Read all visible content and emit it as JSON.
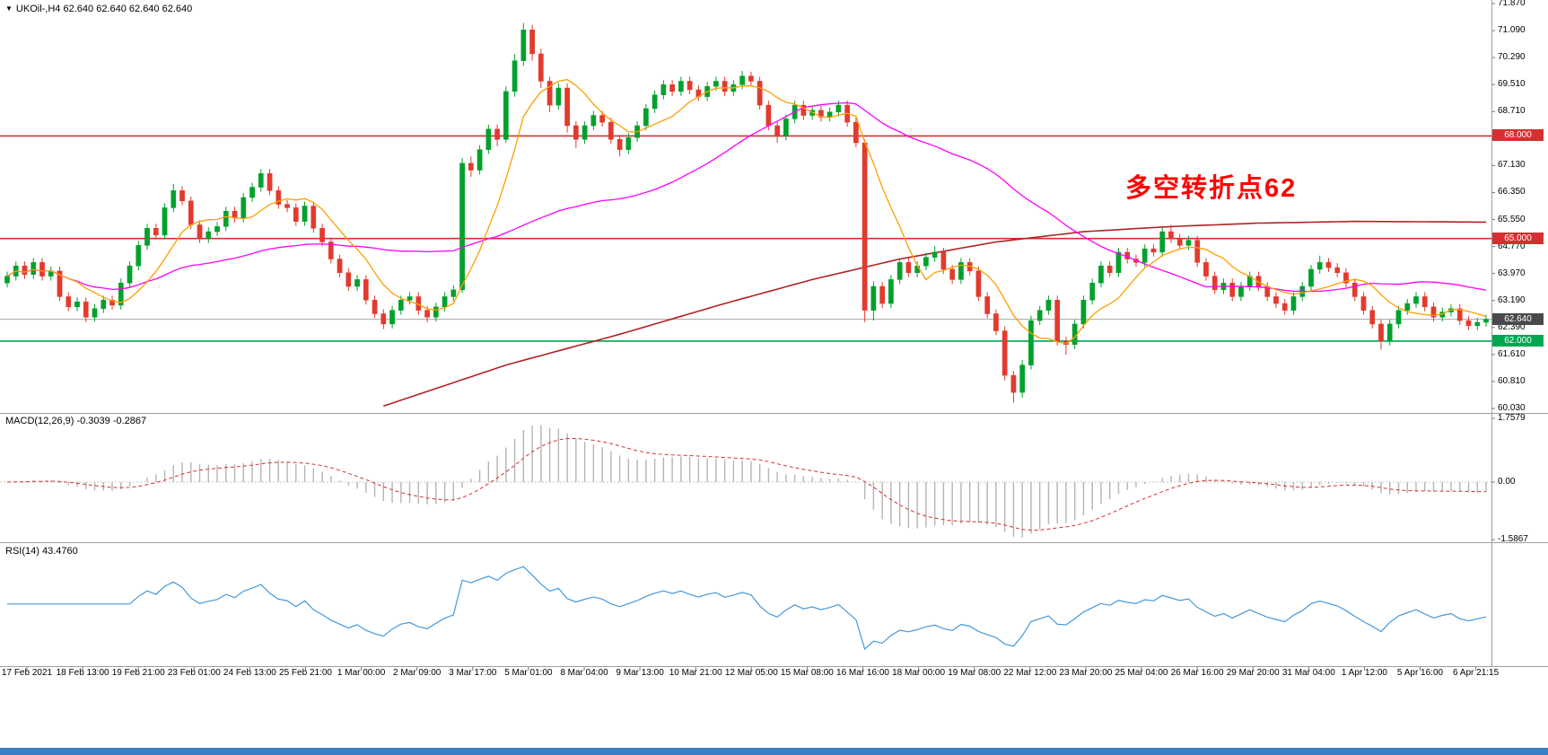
{
  "header": {
    "dropdown_icon": "▼",
    "symbol": "UKOil-,H4",
    "ohlc": "62.640 62.640 62.640 62.640"
  },
  "annotation": {
    "text": "多空转折点62"
  },
  "colors": {
    "background": "#FFFFFF",
    "bull": "#00A12B",
    "bear": "#E23A2E",
    "ma_fast": "#FF9E00",
    "ma_medium": "#FF00FF",
    "ma_slow": "#B22222",
    "macd_histogram": "#B4B4B4",
    "macd_signal": "#D62F2F",
    "rsi_line": "#4499DD",
    "level_red": "#D62F2F",
    "level_green": "#00A651",
    "current_price_line": "#A6A6A6",
    "current_price_box": "#4A4A4A",
    "separator": "#9E9E9E",
    "annotation": "#FF0000",
    "bottom_strip": "#3B7FC4"
  },
  "chart_data": [
    {
      "type": "candlestick",
      "title": "UKOil- H4",
      "timeframe": "H4",
      "ylim": [
        60.03,
        71.87
      ],
      "y_ticks": [
        "71.870",
        "71.090",
        "70.290",
        "69.510",
        "68.710",
        "67.930",
        "67.130",
        "66.350",
        "65.550",
        "64.770",
        "63.970",
        "63.190",
        "62.390",
        "61.610",
        "60.810",
        "60.030"
      ],
      "x_ticks": [
        "17 Feb 2021",
        "18 Feb 13:00",
        "19 Feb 21:00",
        "23 Feb 01:00",
        "24 Feb 13:00",
        "25 Feb 21:00",
        "1 Mar 00:00",
        "2 Mar 09:00",
        "3 Mar 17:00",
        "5 Mar 01:00",
        "8 Mar 04:00",
        "9 Mar 13:00",
        "10 Mar 21:00",
        "12 Mar 05:00",
        "15 Mar 08:00",
        "16 Mar 16:00",
        "18 Mar 00:00",
        "19 Mar 08:00",
        "22 Mar 12:00",
        "23 Mar 20:00",
        "25 Mar 04:00",
        "26 Mar 16:00",
        "29 Mar 20:00",
        "31 Mar 04:00",
        "1 Apr 12:00",
        "5 Apr 16:00",
        "6 Apr 21:15"
      ],
      "levels": [
        {
          "price": 68.0,
          "label": "68.000",
          "role": "resistance",
          "color_key": "level_red"
        },
        {
          "price": 65.0,
          "label": "65.000",
          "role": "resistance",
          "color_key": "level_red"
        },
        {
          "price": 62.0,
          "label": "62.000",
          "role": "support",
          "color_key": "level_green"
        },
        {
          "price": 62.64,
          "label": "62.640",
          "role": "current-price",
          "color_key": "current_price_box"
        }
      ],
      "moving_averages": [
        {
          "name": "fast",
          "type": "sma",
          "period": 8,
          "color_key": "ma_fast"
        },
        {
          "name": "medium",
          "type": "sma",
          "period": 40,
          "color_key": "ma_medium"
        },
        {
          "name": "slow",
          "type": "points",
          "color_key": "ma_slow",
          "points": [
            [
              43,
              60.1
            ],
            [
              57,
              61.3
            ],
            [
              70,
              62.2
            ],
            [
              82,
              63.1
            ],
            [
              92,
              63.8
            ],
            [
              102,
              64.4
            ],
            [
              113,
              64.9
            ],
            [
              123,
              65.2
            ],
            [
              133,
              65.35
            ],
            [
              143,
              65.45
            ],
            [
              154,
              65.5
            ],
            [
              169,
              65.48
            ]
          ]
        }
      ],
      "candles": [
        [
          63.7,
          64.03,
          63.57,
          63.9
        ],
        [
          63.9,
          64.33,
          63.77,
          64.2
        ],
        [
          64.2,
          64.33,
          63.82,
          63.95
        ],
        [
          63.95,
          64.43,
          63.82,
          64.3
        ],
        [
          64.3,
          64.43,
          63.77,
          63.9
        ],
        [
          63.9,
          64.18,
          63.77,
          64.05
        ],
        [
          64.05,
          64.18,
          63.17,
          63.3
        ],
        [
          63.3,
          63.43,
          62.87,
          63.0
        ],
        [
          63.0,
          63.28,
          62.87,
          63.15
        ],
        [
          63.15,
          63.28,
          62.55,
          62.7
        ],
        [
          62.7,
          63.08,
          62.57,
          62.95
        ],
        [
          62.95,
          63.33,
          62.82,
          63.2
        ],
        [
          63.2,
          63.33,
          62.92,
          63.05
        ],
        [
          63.05,
          63.83,
          62.92,
          63.7
        ],
        [
          63.7,
          64.33,
          63.57,
          64.2
        ],
        [
          64.2,
          64.93,
          64.07,
          64.8
        ],
        [
          64.8,
          65.43,
          64.67,
          65.3
        ],
        [
          65.3,
          65.43,
          64.97,
          65.1
        ],
        [
          65.1,
          66.03,
          64.97,
          65.9
        ],
        [
          65.9,
          66.6,
          65.77,
          66.4
        ],
        [
          66.4,
          66.53,
          65.97,
          66.1
        ],
        [
          66.1,
          66.23,
          65.27,
          65.4
        ],
        [
          65.4,
          65.53,
          64.87,
          65.0
        ],
        [
          65.0,
          65.33,
          64.87,
          65.2
        ],
        [
          65.2,
          65.48,
          65.07,
          65.35
        ],
        [
          65.35,
          65.93,
          65.22,
          65.8
        ],
        [
          65.8,
          65.93,
          65.47,
          65.6
        ],
        [
          65.6,
          66.33,
          65.47,
          66.2
        ],
        [
          66.2,
          66.63,
          66.07,
          66.5
        ],
        [
          66.5,
          67.03,
          66.37,
          66.9
        ],
        [
          66.9,
          67.03,
          66.27,
          66.4
        ],
        [
          66.4,
          66.53,
          65.87,
          66.0
        ],
        [
          66.0,
          66.13,
          65.77,
          65.9
        ],
        [
          65.9,
          66.03,
          65.37,
          65.5
        ],
        [
          65.5,
          66.08,
          65.37,
          65.95
        ],
        [
          65.95,
          66.08,
          65.17,
          65.3
        ],
        [
          65.3,
          65.43,
          64.77,
          64.9
        ],
        [
          64.9,
          65.03,
          64.27,
          64.4
        ],
        [
          64.4,
          64.53,
          63.87,
          64.0
        ],
        [
          64.0,
          64.13,
          63.47,
          63.6
        ],
        [
          63.6,
          63.93,
          63.47,
          63.8
        ],
        [
          63.8,
          63.93,
          63.07,
          63.2
        ],
        [
          63.2,
          63.33,
          62.67,
          62.8
        ],
        [
          62.8,
          62.93,
          62.35,
          62.5
        ],
        [
          62.5,
          63.03,
          62.37,
          62.9
        ],
        [
          62.9,
          63.33,
          62.77,
          63.2
        ],
        [
          63.2,
          63.43,
          63.07,
          63.3
        ],
        [
          63.3,
          63.43,
          62.77,
          62.9
        ],
        [
          62.9,
          63.03,
          62.55,
          62.7
        ],
        [
          62.7,
          63.13,
          62.57,
          63.0
        ],
        [
          63.0,
          63.43,
          62.87,
          63.3
        ],
        [
          63.3,
          63.63,
          63.17,
          63.5
        ],
        [
          63.5,
          67.35,
          63.4,
          67.2
        ],
        [
          67.2,
          67.4,
          66.8,
          67.0
        ],
        [
          67.0,
          67.73,
          66.87,
          67.6
        ],
        [
          67.6,
          68.33,
          67.47,
          68.2
        ],
        [
          68.2,
          68.33,
          67.7,
          67.9
        ],
        [
          67.9,
          69.45,
          67.8,
          69.3
        ],
        [
          69.3,
          70.4,
          69.15,
          70.2
        ],
        [
          70.2,
          71.3,
          70.05,
          71.1
        ],
        [
          71.1,
          71.25,
          70.2,
          70.4
        ],
        [
          70.4,
          70.55,
          69.4,
          69.6
        ],
        [
          69.6,
          69.73,
          68.7,
          68.9
        ],
        [
          68.9,
          69.55,
          68.77,
          69.4
        ],
        [
          69.4,
          69.53,
          68.1,
          68.3
        ],
        [
          68.3,
          68.43,
          67.65,
          67.9
        ],
        [
          67.9,
          68.43,
          67.77,
          68.3
        ],
        [
          68.3,
          68.73,
          68.17,
          68.6
        ],
        [
          68.6,
          68.73,
          68.27,
          68.4
        ],
        [
          68.4,
          68.53,
          67.77,
          67.9
        ],
        [
          67.9,
          68.03,
          67.4,
          67.6
        ],
        [
          67.6,
          68.08,
          67.47,
          67.95
        ],
        [
          67.95,
          68.43,
          67.82,
          68.3
        ],
        [
          68.3,
          68.93,
          68.17,
          68.8
        ],
        [
          68.8,
          69.33,
          68.67,
          69.2
        ],
        [
          69.2,
          69.63,
          69.07,
          69.5
        ],
        [
          69.5,
          69.63,
          69.17,
          69.3
        ],
        [
          69.3,
          69.73,
          69.17,
          69.6
        ],
        [
          69.6,
          69.73,
          69.22,
          69.35
        ],
        [
          69.35,
          69.48,
          69.02,
          69.15
        ],
        [
          69.15,
          69.58,
          69.02,
          69.45
        ],
        [
          69.45,
          69.73,
          69.32,
          69.6
        ],
        [
          69.6,
          69.73,
          69.17,
          69.3
        ],
        [
          69.3,
          69.63,
          69.17,
          69.5
        ],
        [
          69.5,
          69.9,
          69.37,
          69.75
        ],
        [
          69.75,
          69.88,
          69.47,
          69.6
        ],
        [
          69.6,
          69.73,
          68.77,
          68.9
        ],
        [
          68.9,
          69.03,
          68.17,
          68.3
        ],
        [
          68.3,
          68.43,
          67.8,
          68.0
        ],
        [
          68.0,
          68.63,
          67.87,
          68.5
        ],
        [
          68.5,
          69.03,
          68.37,
          68.9
        ],
        [
          68.9,
          69.03,
          68.47,
          68.6
        ],
        [
          68.6,
          68.88,
          68.47,
          68.75
        ],
        [
          68.75,
          68.88,
          68.42,
          68.55
        ],
        [
          68.55,
          68.83,
          68.42,
          68.7
        ],
        [
          68.7,
          69.03,
          68.57,
          68.9
        ],
        [
          68.9,
          69.03,
          68.27,
          68.4
        ],
        [
          68.4,
          68.53,
          67.67,
          67.8
        ],
        [
          67.8,
          67.9,
          62.55,
          62.9
        ],
        [
          62.9,
          63.75,
          62.6,
          63.6
        ],
        [
          63.6,
          63.73,
          62.97,
          63.1
        ],
        [
          63.1,
          63.93,
          62.97,
          63.8
        ],
        [
          63.8,
          64.43,
          63.67,
          64.3
        ],
        [
          64.3,
          64.43,
          63.87,
          64.0
        ],
        [
          64.0,
          64.33,
          63.87,
          64.2
        ],
        [
          64.2,
          64.58,
          64.07,
          64.45
        ],
        [
          64.45,
          64.78,
          64.32,
          64.6
        ],
        [
          64.6,
          64.73,
          63.97,
          64.1
        ],
        [
          64.1,
          64.23,
          63.67,
          63.8
        ],
        [
          63.8,
          64.43,
          63.67,
          64.3
        ],
        [
          64.3,
          64.43,
          63.92,
          64.05
        ],
        [
          64.05,
          64.18,
          63.17,
          63.3
        ],
        [
          63.3,
          63.43,
          62.67,
          62.8
        ],
        [
          62.8,
          62.93,
          62.17,
          62.3
        ],
        [
          62.3,
          62.43,
          60.85,
          61.0
        ],
        [
          61.0,
          61.13,
          60.2,
          60.5
        ],
        [
          60.5,
          61.45,
          60.35,
          61.3
        ],
        [
          61.3,
          62.75,
          61.17,
          62.6
        ],
        [
          62.6,
          63.03,
          62.47,
          62.9
        ],
        [
          62.9,
          63.33,
          62.77,
          63.2
        ],
        [
          63.2,
          63.33,
          61.87,
          62.0
        ],
        [
          62.0,
          62.13,
          61.6,
          61.9
        ],
        [
          61.9,
          62.63,
          61.77,
          62.5
        ],
        [
          62.5,
          63.33,
          62.37,
          63.2
        ],
        [
          63.2,
          63.83,
          63.07,
          63.7
        ],
        [
          63.7,
          64.33,
          63.57,
          64.2
        ],
        [
          64.2,
          64.33,
          63.87,
          64.0
        ],
        [
          64.0,
          64.73,
          63.87,
          64.6
        ],
        [
          64.6,
          64.73,
          64.27,
          64.4
        ],
        [
          64.4,
          64.53,
          64.17,
          64.3
        ],
        [
          64.3,
          64.83,
          64.17,
          64.7
        ],
        [
          64.7,
          64.83,
          64.47,
          64.6
        ],
        [
          64.6,
          65.33,
          64.47,
          65.2
        ],
        [
          65.2,
          65.4,
          64.87,
          65.0
        ],
        [
          65.0,
          65.13,
          64.67,
          64.8
        ],
        [
          64.8,
          65.08,
          64.67,
          64.95
        ],
        [
          64.95,
          65.08,
          64.17,
          64.3
        ],
        [
          64.3,
          64.43,
          63.77,
          63.9
        ],
        [
          63.9,
          64.03,
          63.37,
          63.5
        ],
        [
          63.5,
          63.83,
          63.37,
          63.7
        ],
        [
          63.7,
          63.83,
          63.17,
          63.3
        ],
        [
          63.3,
          63.73,
          63.17,
          63.6
        ],
        [
          63.6,
          64.03,
          63.47,
          63.9
        ],
        [
          63.9,
          64.03,
          63.47,
          63.6
        ],
        [
          63.6,
          63.73,
          63.17,
          63.3
        ],
        [
          63.3,
          63.43,
          62.97,
          63.1
        ],
        [
          63.1,
          63.23,
          62.77,
          62.9
        ],
        [
          62.9,
          63.43,
          62.77,
          63.3
        ],
        [
          63.3,
          63.73,
          63.17,
          63.6
        ],
        [
          63.6,
          64.23,
          63.47,
          64.1
        ],
        [
          64.1,
          64.5,
          63.97,
          64.3
        ],
        [
          64.3,
          64.43,
          64.02,
          64.15
        ],
        [
          64.15,
          64.28,
          63.87,
          64.0
        ],
        [
          64.0,
          64.13,
          63.57,
          63.7
        ],
        [
          63.7,
          63.83,
          63.17,
          63.3
        ],
        [
          63.3,
          63.43,
          62.77,
          62.9
        ],
        [
          62.9,
          63.03,
          62.37,
          62.5
        ],
        [
          62.5,
          62.63,
          61.75,
          62.0
        ],
        [
          62.0,
          62.63,
          61.87,
          62.5
        ],
        [
          62.5,
          63.03,
          62.37,
          62.9
        ],
        [
          62.9,
          63.23,
          62.77,
          63.1
        ],
        [
          63.1,
          63.43,
          62.97,
          63.3
        ],
        [
          63.3,
          63.43,
          62.87,
          63.0
        ],
        [
          63.0,
          63.13,
          62.57,
          62.7
        ],
        [
          62.7,
          62.98,
          62.57,
          62.85
        ],
        [
          62.85,
          63.08,
          62.72,
          62.95
        ],
        [
          62.95,
          63.08,
          62.47,
          62.6
        ],
        [
          62.6,
          62.73,
          62.32,
          62.45
        ],
        [
          62.45,
          62.68,
          62.32,
          62.55
        ],
        [
          62.55,
          62.77,
          62.42,
          62.64
        ]
      ]
    },
    {
      "type": "bar",
      "name": "MACD",
      "params": [
        12,
        26,
        9
      ],
      "label": "MACD(12,26,9) -0.3039 -0.2867",
      "current_values": [
        -0.3039,
        -0.2867
      ],
      "ylim": [
        -1.5867,
        1.7579
      ],
      "y_ticks": [
        "1.7579",
        "0.00",
        "-1.5867"
      ]
    },
    {
      "type": "line",
      "name": "RSI",
      "period": 14,
      "label": "RSI(14) 43.4760",
      "current_value": 43.476,
      "range": [
        0,
        100
      ]
    }
  ]
}
